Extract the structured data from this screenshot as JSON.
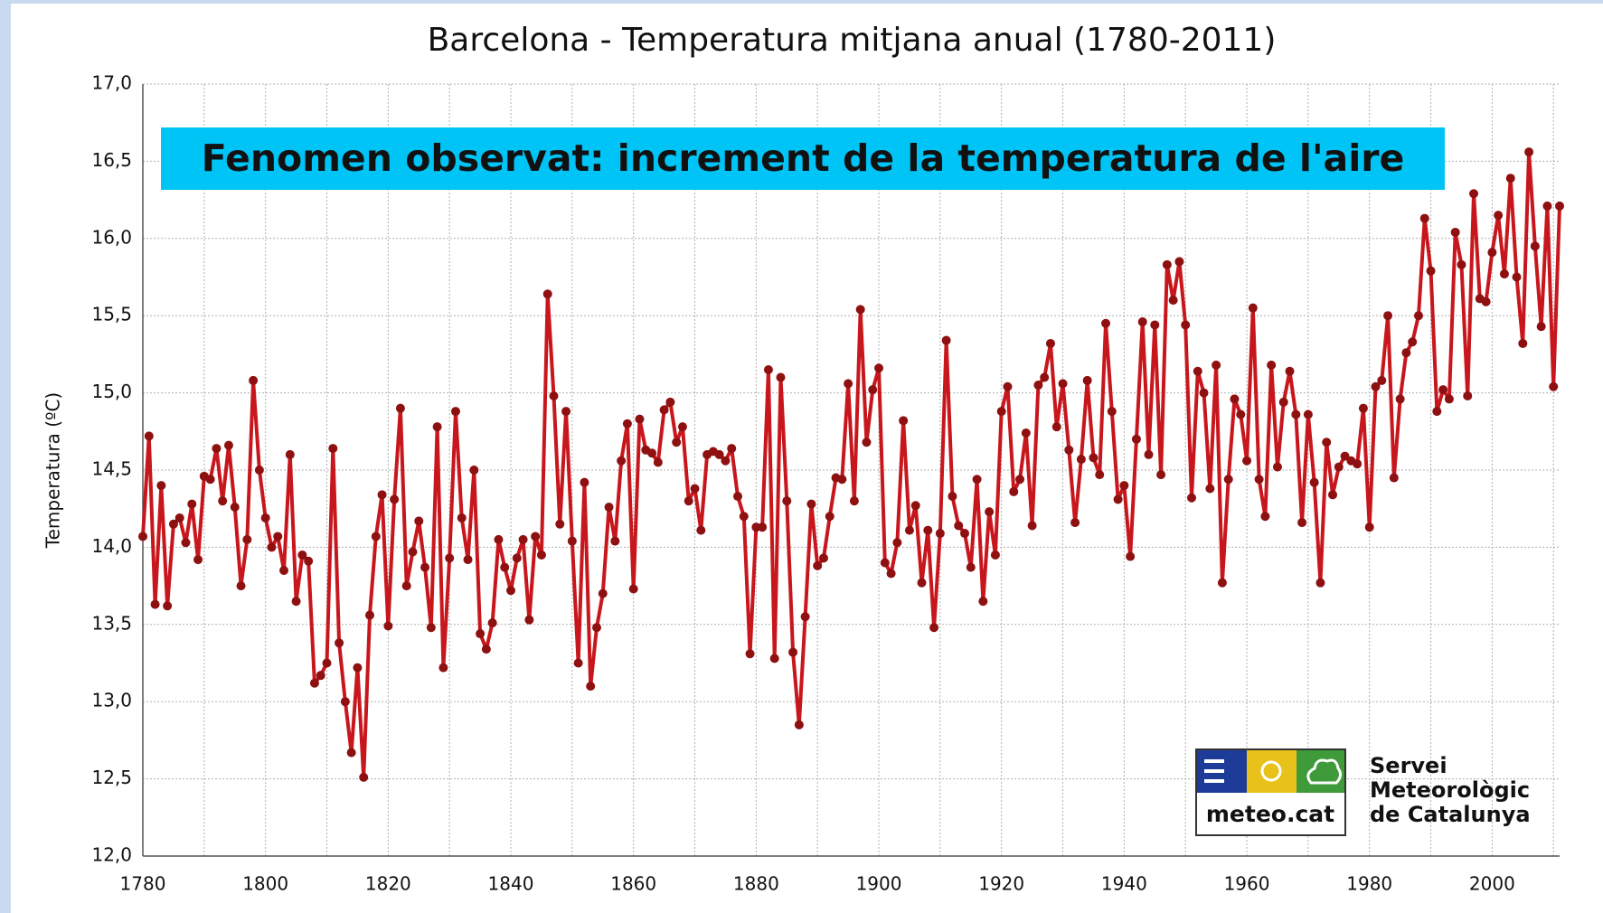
{
  "chart_data": {
    "type": "line",
    "title": "Barcelona - Temperatura mitjana anual (1780-2011)",
    "annotation": "Fenomen observat: increment de la temperatura de l'aire",
    "ylabel": "Temperatura (ºC)",
    "logo": {
      "brand": "meteo.cat",
      "lines": [
        "Servei",
        "Meteorològic",
        "de Catalunya"
      ]
    },
    "color": "#c8161d",
    "marker_color": "#8e1010",
    "grid": true,
    "xlim": [
      1780,
      2011
    ],
    "xticks": [
      1780,
      1800,
      1820,
      1840,
      1860,
      1880,
      1900,
      1920,
      1940,
      1960,
      1980,
      2000
    ],
    "xminor": [
      1790,
      1810,
      1830,
      1850,
      1870,
      1890,
      1910,
      1930,
      1950,
      1970,
      1990,
      2010
    ],
    "ylim": [
      12,
      17
    ],
    "yticks": [
      {
        "value": 12,
        "label": "12,0"
      },
      {
        "value": 12.5,
        "label": "12,5"
      },
      {
        "value": 13,
        "label": "13,0"
      },
      {
        "value": 13.5,
        "label": "13,5"
      },
      {
        "value": 14,
        "label": "14,0"
      },
      {
        "value": 14.5,
        "label": "14,5"
      },
      {
        "value": 15,
        "label": "15,0"
      },
      {
        "value": 15.5,
        "label": "15,5"
      },
      {
        "value": 16,
        "label": "16,0"
      },
      {
        "value": 16.5,
        "label": "16,5"
      },
      {
        "value": 17,
        "label": "17,0"
      }
    ],
    "x": [
      1780,
      1781,
      1782,
      1783,
      1784,
      1785,
      1786,
      1787,
      1788,
      1789,
      1790,
      1791,
      1792,
      1793,
      1794,
      1795,
      1796,
      1797,
      1798,
      1799,
      1800,
      1801,
      1802,
      1803,
      1804,
      1805,
      1806,
      1807,
      1808,
      1809,
      1810,
      1811,
      1812,
      1813,
      1814,
      1815,
      1816,
      1817,
      1818,
      1819,
      1820,
      1821,
      1822,
      1823,
      1824,
      1825,
      1826,
      1827,
      1828,
      1829,
      1830,
      1831,
      1832,
      1833,
      1834,
      1835,
      1836,
      1837,
      1838,
      1839,
      1840,
      1841,
      1842,
      1843,
      1844,
      1845,
      1846,
      1847,
      1848,
      1849,
      1850,
      1851,
      1852,
      1853,
      1854,
      1855,
      1856,
      1857,
      1858,
      1859,
      1860,
      1861,
      1862,
      1863,
      1864,
      1865,
      1866,
      1867,
      1868,
      1869,
      1870,
      1871,
      1872,
      1873,
      1874,
      1875,
      1876,
      1877,
      1878,
      1879,
      1880,
      1881,
      1882,
      1883,
      1884,
      1885,
      1886,
      1887,
      1888,
      1889,
      1890,
      1891,
      1892,
      1893,
      1894,
      1895,
      1896,
      1897,
      1898,
      1899,
      1900,
      1901,
      1902,
      1903,
      1904,
      1905,
      1906,
      1907,
      1908,
      1909,
      1910,
      1911,
      1912,
      1913,
      1914,
      1915,
      1916,
      1917,
      1918,
      1919,
      1920,
      1921,
      1922,
      1923,
      1924,
      1925,
      1926,
      1927,
      1928,
      1929,
      1930,
      1931,
      1932,
      1933,
      1934,
      1935,
      1936,
      1937,
      1938,
      1939,
      1940,
      1941,
      1942,
      1943,
      1944,
      1945,
      1946,
      1947,
      1948,
      1949,
      1950,
      1951,
      1952,
      1953,
      1954,
      1955,
      1956,
      1957,
      1958,
      1959,
      1960,
      1961,
      1962,
      1963,
      1964,
      1965,
      1966,
      1967,
      1968,
      1969,
      1970,
      1971,
      1972,
      1973,
      1974,
      1975,
      1976,
      1977,
      1978,
      1979,
      1980,
      1981,
      1982,
      1983,
      1984,
      1985,
      1986,
      1987,
      1988,
      1989,
      1990,
      1991,
      1992,
      1993,
      1994,
      1995,
      1996,
      1997,
      1998,
      1999,
      2000,
      2001,
      2002,
      2003,
      2004,
      2005,
      2006,
      2007,
      2008,
      2009,
      2010,
      2011
    ],
    "values": [
      14.07,
      14.72,
      13.63,
      14.4,
      13.62,
      14.15,
      14.19,
      14.03,
      14.28,
      13.92,
      14.46,
      14.44,
      14.64,
      14.3,
      14.66,
      14.26,
      13.75,
      14.05,
      15.08,
      14.5,
      14.19,
      14.0,
      14.07,
      13.85,
      14.6,
      13.65,
      13.95,
      13.91,
      13.12,
      13.17,
      13.25,
      14.64,
      13.38,
      13.0,
      12.67,
      13.22,
      12.51,
      13.56,
      14.07,
      14.34,
      13.49,
      14.31,
      14.9,
      13.75,
      13.97,
      14.17,
      13.87,
      13.48,
      14.78,
      13.22,
      13.93,
      14.88,
      14.19,
      13.92,
      14.5,
      13.44,
      13.34,
      13.51,
      14.05,
      13.87,
      13.72,
      13.93,
      14.05,
      13.53,
      14.07,
      13.95,
      15.64,
      14.98,
      14.15,
      14.88,
      14.04,
      13.25,
      14.42,
      13.1,
      13.48,
      13.7,
      14.26,
      14.04,
      14.56,
      14.8,
      13.73,
      14.83,
      14.63,
      14.61,
      14.55,
      14.89,
      14.94,
      14.68,
      14.78,
      14.3,
      14.38,
      14.11,
      14.6,
      14.62,
      14.6,
      14.56,
      14.64,
      14.33,
      14.2,
      13.31,
      14.13,
      14.13,
      15.15,
      13.28,
      15.1,
      14.3,
      13.32,
      12.85,
      13.55,
      14.28,
      13.88,
      13.93,
      14.2,
      14.45,
      14.44,
      15.06,
      14.3,
      15.54,
      14.68,
      15.02,
      15.16,
      13.9,
      13.83,
      14.03,
      14.82,
      14.11,
      14.27,
      13.77,
      14.11,
      13.48,
      14.09,
      15.34,
      14.33,
      14.14,
      14.09,
      13.87,
      14.44,
      13.65,
      14.23,
      13.95,
      14.88,
      15.04,
      14.36,
      14.44,
      14.74,
      14.14,
      15.05,
      15.1,
      15.32,
      14.78,
      15.06,
      14.63,
      14.16,
      14.57,
      15.08,
      14.58,
      14.47,
      15.45,
      14.88,
      14.31,
      14.4,
      13.94,
      14.7,
      15.46,
      14.6,
      15.44,
      14.47,
      15.83,
      15.6,
      15.85,
      15.44,
      14.32,
      15.14,
      15.0,
      14.38,
      15.18,
      13.77,
      14.44,
      14.96,
      14.86,
      14.56,
      15.55,
      14.44,
      14.2,
      15.18,
      14.52,
      14.94,
      15.14,
      14.86,
      14.16,
      14.86,
      14.42,
      13.77,
      14.68,
      14.34,
      14.52,
      14.59,
      14.56,
      14.54,
      14.9,
      14.13,
      15.04,
      15.08,
      15.5,
      14.45,
      14.96,
      15.26,
      15.33,
      15.5,
      16.13,
      15.79,
      14.88,
      15.02,
      14.96,
      16.04,
      15.83,
      14.98,
      16.29,
      15.61,
      15.59,
      15.91,
      16.15,
      15.77,
      16.39,
      15.75,
      15.32,
      16.56,
      15.95,
      15.43,
      16.21,
      15.04,
      16.21
    ]
  }
}
